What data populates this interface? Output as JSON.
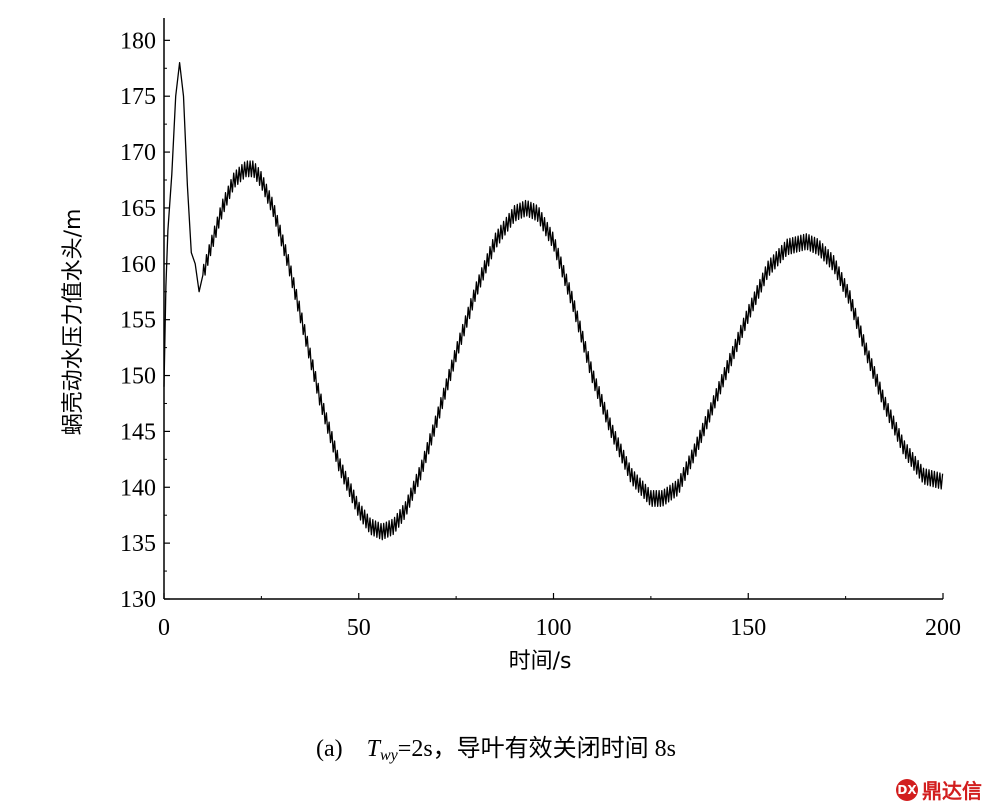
{
  "chart_data": {
    "type": "line",
    "xlabel": "时间/s",
    "ylabel": "蜗壳动水压力值水头/m",
    "xlim": [
      0,
      200
    ],
    "ylim": [
      130,
      182
    ],
    "xticks": [
      0,
      50,
      100,
      150,
      200
    ],
    "yticks": [
      130,
      135,
      140,
      145,
      150,
      155,
      160,
      165,
      170,
      175,
      180
    ],
    "grid": false,
    "oscillation_amplitude": 0.7,
    "series": [
      {
        "color": "#000000",
        "x": [
          0,
          0.5,
          1,
          2,
          3,
          4,
          5,
          6,
          7,
          8,
          9,
          10,
          12,
          15,
          18,
          21,
          23,
          25,
          28,
          32,
          36,
          40,
          45,
          50,
          53,
          56,
          59,
          62,
          66,
          70,
          75,
          80,
          85,
          90,
          93,
          96,
          100,
          105,
          110,
          115,
          120,
          125,
          128,
          132,
          136,
          140,
          145,
          150,
          155,
          160,
          165,
          168,
          172,
          176,
          180,
          185,
          190,
          195,
          200
        ],
        "values": [
          149,
          158,
          163,
          168,
          175,
          178,
          175,
          167,
          161,
          160,
          157.5,
          159,
          161.5,
          165,
          167.5,
          168.5,
          168.5,
          167.5,
          165,
          160,
          154,
          148,
          142,
          138,
          136.5,
          136,
          136.5,
          138,
          141.5,
          146,
          152,
          157.5,
          162,
          164.5,
          165,
          164.5,
          162,
          156.5,
          150,
          145,
          141,
          139,
          139,
          140,
          143,
          146.5,
          151,
          155.5,
          159.5,
          161.5,
          162,
          161.5,
          160,
          157,
          152.5,
          147.5,
          143.5,
          141,
          140.5
        ]
      }
    ]
  },
  "caption": {
    "prefix": "(a)",
    "symbol": "T",
    "subscript": "wy",
    "text": "=2s，导叶有效关闭时间 8s"
  },
  "watermark": {
    "logo": "DX",
    "text": "鼎达信"
  }
}
